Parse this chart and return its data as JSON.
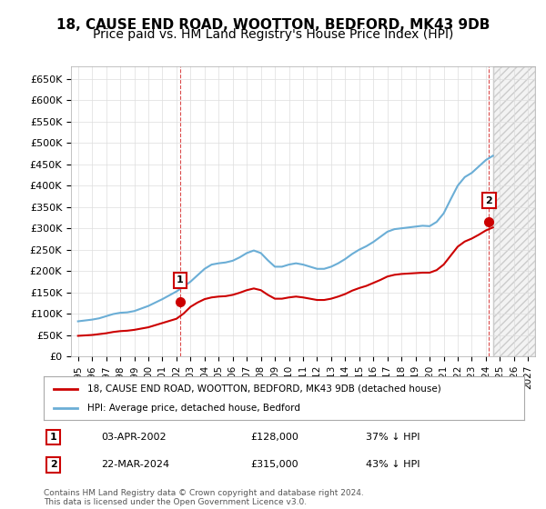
{
  "title": "18, CAUSE END ROAD, WOOTTON, BEDFORD, MK43 9DB",
  "subtitle": "Price paid vs. HM Land Registry's House Price Index (HPI)",
  "title_fontsize": 11,
  "subtitle_fontsize": 10,
  "ylim": [
    0,
    680000
  ],
  "yticks": [
    0,
    50000,
    100000,
    150000,
    200000,
    250000,
    300000,
    350000,
    400000,
    450000,
    500000,
    550000,
    600000,
    650000
  ],
  "ytick_labels": [
    "£0",
    "£50K",
    "£100K",
    "£150K",
    "£200K",
    "£250K",
    "£300K",
    "£350K",
    "£400K",
    "£450K",
    "£500K",
    "£550K",
    "£600K",
    "£650K"
  ],
  "hpi_color": "#6baed6",
  "price_color": "#cc0000",
  "marker_color_1": "#cc0000",
  "marker_color_2": "#cc0000",
  "background_color": "#ffffff",
  "grid_color": "#dddddd",
  "legend_label_red": "18, CAUSE END ROAD, WOOTTON, BEDFORD, MK43 9DB (detached house)",
  "legend_label_blue": "HPI: Average price, detached house, Bedford",
  "annotation_1_label": "1",
  "annotation_1_date": "03-APR-2002",
  "annotation_1_price": "£128,000",
  "annotation_1_hpi": "37% ↓ HPI",
  "annotation_2_label": "2",
  "annotation_2_date": "22-MAR-2024",
  "annotation_2_price": "£315,000",
  "annotation_2_hpi": "43% ↓ HPI",
  "footnote": "Contains HM Land Registry data © Crown copyright and database right 2024.\nThis data is licensed under the Open Government Licence v3.0.",
  "sale_1_year": 2002.25,
  "sale_1_price": 128000,
  "sale_2_year": 2024.22,
  "sale_2_price": 315000,
  "hpi_x": [
    1995,
    1995.5,
    1996,
    1996.5,
    1997,
    1997.5,
    1998,
    1998.5,
    1999,
    1999.5,
    2000,
    2000.5,
    2001,
    2001.5,
    2002,
    2002.5,
    2003,
    2003.5,
    2004,
    2004.5,
    2005,
    2005.5,
    2006,
    2006.5,
    2007,
    2007.5,
    2008,
    2008.5,
    2009,
    2009.5,
    2010,
    2010.5,
    2011,
    2011.5,
    2012,
    2012.5,
    2013,
    2013.5,
    2014,
    2014.5,
    2015,
    2015.5,
    2016,
    2016.5,
    2017,
    2017.5,
    2018,
    2018.5,
    2019,
    2019.5,
    2020,
    2020.5,
    2021,
    2021.5,
    2022,
    2022.5,
    2023,
    2023.5,
    2024,
    2024.5
  ],
  "hpi_y": [
    82000,
    84000,
    86000,
    89000,
    94000,
    99000,
    102000,
    103000,
    106000,
    112000,
    118000,
    126000,
    134000,
    143000,
    152000,
    163000,
    175000,
    190000,
    205000,
    215000,
    218000,
    220000,
    224000,
    232000,
    242000,
    248000,
    242000,
    225000,
    210000,
    210000,
    215000,
    218000,
    215000,
    210000,
    205000,
    205000,
    210000,
    218000,
    228000,
    240000,
    250000,
    258000,
    268000,
    280000,
    292000,
    298000,
    300000,
    302000,
    304000,
    306000,
    305000,
    315000,
    335000,
    368000,
    400000,
    420000,
    430000,
    445000,
    460000,
    470000
  ],
  "price_x": [
    1995,
    1995.5,
    1996,
    1996.5,
    1997,
    1997.5,
    1998,
    1998.5,
    1999,
    1999.5,
    2000,
    2000.5,
    2001,
    2001.5,
    2002,
    2002.5,
    2003,
    2003.5,
    2004,
    2004.5,
    2005,
    2005.5,
    2006,
    2006.5,
    2007,
    2007.5,
    2008,
    2008.5,
    2009,
    2009.5,
    2010,
    2010.5,
    2011,
    2011.5,
    2012,
    2012.5,
    2013,
    2013.5,
    2014,
    2014.5,
    2015,
    2015.5,
    2016,
    2016.5,
    2017,
    2017.5,
    2018,
    2018.5,
    2019,
    2019.5,
    2020,
    2020.5,
    2021,
    2021.5,
    2022,
    2022.5,
    2023,
    2023.5,
    2024,
    2024.5
  ],
  "price_y": [
    48000,
    49000,
    50000,
    52000,
    54000,
    57000,
    59000,
    60000,
    62000,
    65000,
    68000,
    73000,
    78000,
    83000,
    88000,
    100000,
    116000,
    126000,
    134000,
    138000,
    140000,
    141000,
    144000,
    149000,
    155000,
    159000,
    155000,
    144000,
    135000,
    135000,
    138000,
    140000,
    138000,
    135000,
    132000,
    132000,
    135000,
    140000,
    146000,
    154000,
    160000,
    165000,
    172000,
    179000,
    187000,
    191000,
    193000,
    194000,
    195000,
    196000,
    196000,
    202000,
    215000,
    236000,
    257000,
    269000,
    276000,
    285000,
    295000,
    302000
  ],
  "xtick_years": [
    "1995",
    "1996",
    "1997",
    "1998",
    "1999",
    "2000",
    "2001",
    "2002",
    "2003",
    "2004",
    "2005",
    "2006",
    "2007",
    "2008",
    "2009",
    "2010",
    "2011",
    "2012",
    "2013",
    "2014",
    "2015",
    "2016",
    "2017",
    "2018",
    "2019",
    "2020",
    "2021",
    "2022",
    "2023",
    "2024",
    "2025",
    "2026",
    "2027"
  ],
  "xlim": [
    1994.5,
    2027.5
  ],
  "dashed_x1": 2002.25,
  "dashed_x2": 2024.22,
  "box_fill": "#ffffff",
  "box_border": "#cc0000"
}
